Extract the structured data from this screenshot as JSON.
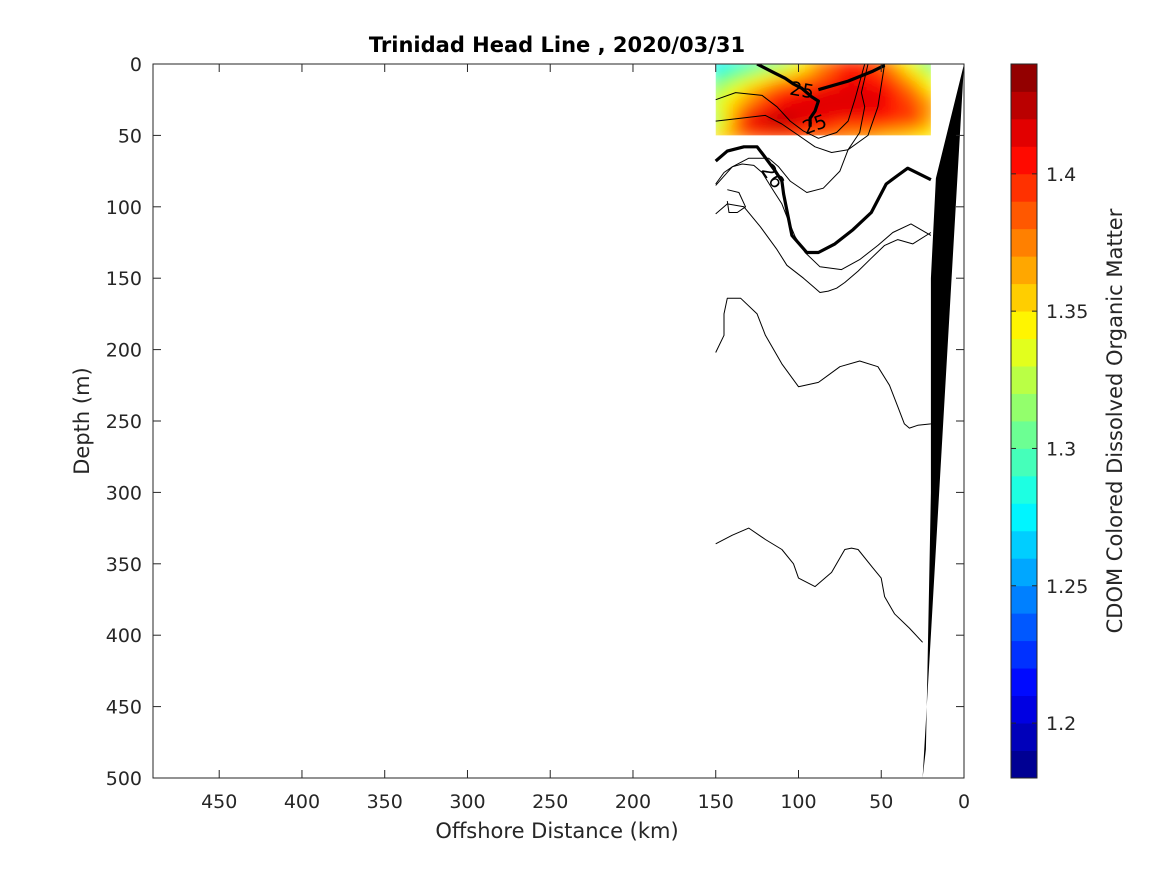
{
  "chart_data": {
    "type": "heatmap",
    "title": "Trinidad Head Line , 2020/03/31",
    "xlabel": "Offshore Distance (km)",
    "ylabel": "Depth (m)",
    "xlim": [
      490,
      0
    ],
    "ylim": [
      500,
      0
    ],
    "x_reversed": true,
    "y_reversed": true,
    "xticks": [
      450,
      400,
      350,
      300,
      250,
      200,
      150,
      100,
      50,
      0
    ],
    "yticks": [
      0,
      50,
      100,
      150,
      200,
      250,
      300,
      350,
      400,
      450,
      500
    ],
    "grid": false,
    "colorbar": {
      "label": "CDOM Colored Dissolved Organic Matter",
      "range": [
        1.18,
        1.44
      ],
      "ticks": [
        1.2,
        1.25,
        1.3,
        1.35,
        1.4
      ],
      "levels": 26,
      "colormap": "jet"
    },
    "heatmap_region": {
      "x_range": [
        150,
        20
      ],
      "depth_range": [
        0,
        50
      ],
      "x": [
        150,
        130,
        110,
        90,
        70,
        50,
        30,
        20
      ],
      "depth": [
        0,
        10,
        20,
        30,
        40,
        50
      ],
      "values": [
        [
          1.27,
          1.29,
          1.31,
          1.36,
          1.4,
          1.38,
          1.33,
          1.3
        ],
        [
          1.3,
          1.33,
          1.36,
          1.38,
          1.41,
          1.4,
          1.36,
          1.33
        ],
        [
          1.32,
          1.36,
          1.4,
          1.41,
          1.42,
          1.41,
          1.38,
          1.35
        ],
        [
          1.33,
          1.38,
          1.41,
          1.42,
          1.42,
          1.41,
          1.39,
          1.37
        ],
        [
          1.31,
          1.42,
          1.43,
          1.41,
          1.4,
          1.4,
          1.39,
          1.36
        ],
        [
          1.35,
          1.38,
          1.39,
          1.38,
          1.37,
          1.36,
          1.35,
          1.34
        ]
      ]
    },
    "contours": [
      {
        "level": "25",
        "bold": true,
        "label": "25",
        "x": [
          88,
          70,
          55,
          48
        ],
        "y": [
          18,
          12,
          5,
          1
        ]
      },
      {
        "level": "25",
        "bold": true,
        "label": "25",
        "x": [
          125,
          115,
          108,
          103,
          98,
          92,
          88,
          90,
          93,
          93
        ],
        "y": [
          0,
          6,
          10,
          14,
          17,
          23,
          26,
          33,
          38,
          44
        ]
      },
      {
        "level": "",
        "bold": false,
        "label": "",
        "x": [
          150,
          135,
          120,
          110,
          100,
          90,
          80,
          70,
          58,
          52,
          48
        ],
        "y": [
          40,
          38,
          36,
          42,
          50,
          58,
          62,
          60,
          50,
          30,
          0
        ]
      },
      {
        "level": "",
        "bold": false,
        "label": "",
        "x": [
          150,
          138,
          122,
          113,
          105,
          97,
          88,
          77,
          70,
          66,
          60
        ],
        "y": [
          25,
          20,
          22,
          30,
          40,
          47,
          52,
          48,
          40,
          25,
          0
        ]
      },
      {
        "level": "",
        "bold": false,
        "label": "",
        "x": [
          150,
          140,
          130,
          118,
          112,
          105,
          95,
          85,
          75,
          70,
          63,
          60,
          62,
          58
        ],
        "y": [
          85,
          72,
          66,
          66,
          72,
          82,
          90,
          87,
          75,
          60,
          48,
          30,
          20,
          0
        ]
      },
      {
        "level": "26",
        "bold": true,
        "label": "26",
        "x": [
          150,
          143,
          133,
          125,
          121,
          114,
          110,
          109,
          104,
          95,
          88,
          78,
          67,
          56,
          47,
          40,
          34,
          20
        ],
        "y": [
          68,
          61,
          58,
          58,
          64,
          75,
          82,
          91,
          120,
          132,
          132,
          126,
          116,
          104,
          84,
          78,
          73,
          81
        ]
      },
      {
        "level": "",
        "bold": false,
        "label": "",
        "x": [
          150,
          145,
          140,
          134,
          127,
          122,
          115,
          110,
          107,
          102,
          96,
          87,
          74,
          63,
          52,
          43,
          32,
          20
        ],
        "y": [
          84,
          76,
          72,
          70,
          71,
          76,
          89,
          98,
          107,
          121,
          132,
          142,
          144,
          137,
          127,
          118,
          112,
          120
        ]
      },
      {
        "level": "",
        "bold": false,
        "label": "",
        "x": [
          143,
          136,
          132,
          137,
          142,
          143
        ],
        "y": [
          88,
          90,
          100,
          104,
          104,
          96
        ]
      },
      {
        "level": "",
        "bold": false,
        "label": "",
        "x": [
          150,
          143,
          133,
          123,
          113,
          107,
          97,
          91,
          87,
          82,
          77,
          72,
          64,
          56,
          48,
          40,
          31,
          20
        ],
        "y": [
          105,
          98,
          100,
          114,
          130,
          141,
          150,
          156,
          160,
          159,
          157,
          153,
          145,
          136,
          127,
          123,
          126,
          118
        ]
      },
      {
        "level": "",
        "bold": false,
        "label": "",
        "x": [
          150,
          145,
          145,
          143,
          135,
          125,
          120,
          110,
          100,
          88,
          75,
          63,
          52,
          45,
          40,
          36,
          33,
          28,
          20
        ],
        "y": [
          202,
          190,
          175,
          164,
          164,
          175,
          190,
          210,
          226,
          223,
          212,
          208,
          212,
          225,
          240,
          252,
          255,
          253,
          252
        ]
      },
      {
        "level": "",
        "bold": false,
        "label": "",
        "x": [
          150,
          140,
          130,
          120,
          110,
          103,
          100,
          90,
          80,
          72,
          68,
          64,
          55,
          50,
          48,
          42,
          33,
          25
        ],
        "y": [
          336,
          330,
          325,
          333,
          340,
          350,
          360,
          366,
          356,
          340,
          339,
          340,
          353,
          360,
          373,
          385,
          395,
          405
        ]
      }
    ],
    "contour_labels": [
      {
        "text": "25",
        "x": 98,
        "y": 19
      },
      {
        "text": "25",
        "x": 90,
        "y": 43
      },
      {
        "text": "26",
        "x": 116,
        "y": 79
      }
    ],
    "bathymetry": {
      "fill": "#000000",
      "x": [
        0,
        25,
        23,
        20,
        20,
        17,
        0
      ],
      "y": [
        0,
        500,
        480,
        300,
        150,
        80,
        0
      ]
    }
  }
}
